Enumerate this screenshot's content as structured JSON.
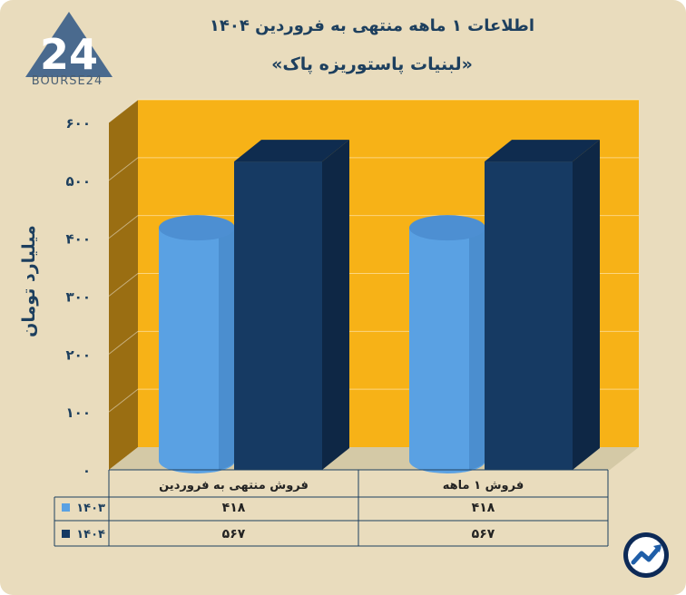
{
  "header": {
    "title": "اطلاعات ۱ ماهه منتهی به فروردین ۱۴۰۴",
    "subtitle": "«لبنیات پاستوریزه پاک»",
    "logo_text": "BOURSE24"
  },
  "chart_data": {
    "type": "bar",
    "ylabel": "میلیارد تومان",
    "ylim": [
      0,
      600
    ],
    "yticks": [
      "۰",
      "۱۰۰",
      "۲۰۰",
      "۳۰۰",
      "۴۰۰",
      "۵۰۰",
      "۶۰۰"
    ],
    "categories": [
      "فروش منتهی به  فروردین",
      "فروش ۱  ماهه"
    ],
    "series": [
      {
        "name": "۱۴۰۳",
        "values": [
          418,
          418
        ],
        "labels": [
          "۴۱۸",
          "۴۱۸"
        ],
        "color": "#5aa1e3"
      },
      {
        "name": "۱۴۰۴",
        "values": [
          567,
          567
        ],
        "labels": [
          "۵۶۷",
          "۵۶۷"
        ],
        "color": "#163a63"
      }
    ],
    "colors": {
      "back_wall": "#f7b217",
      "side_wall": "#9a6e12",
      "floor": "#d4c9a6"
    },
    "grid": true,
    "legend": "table-left"
  }
}
